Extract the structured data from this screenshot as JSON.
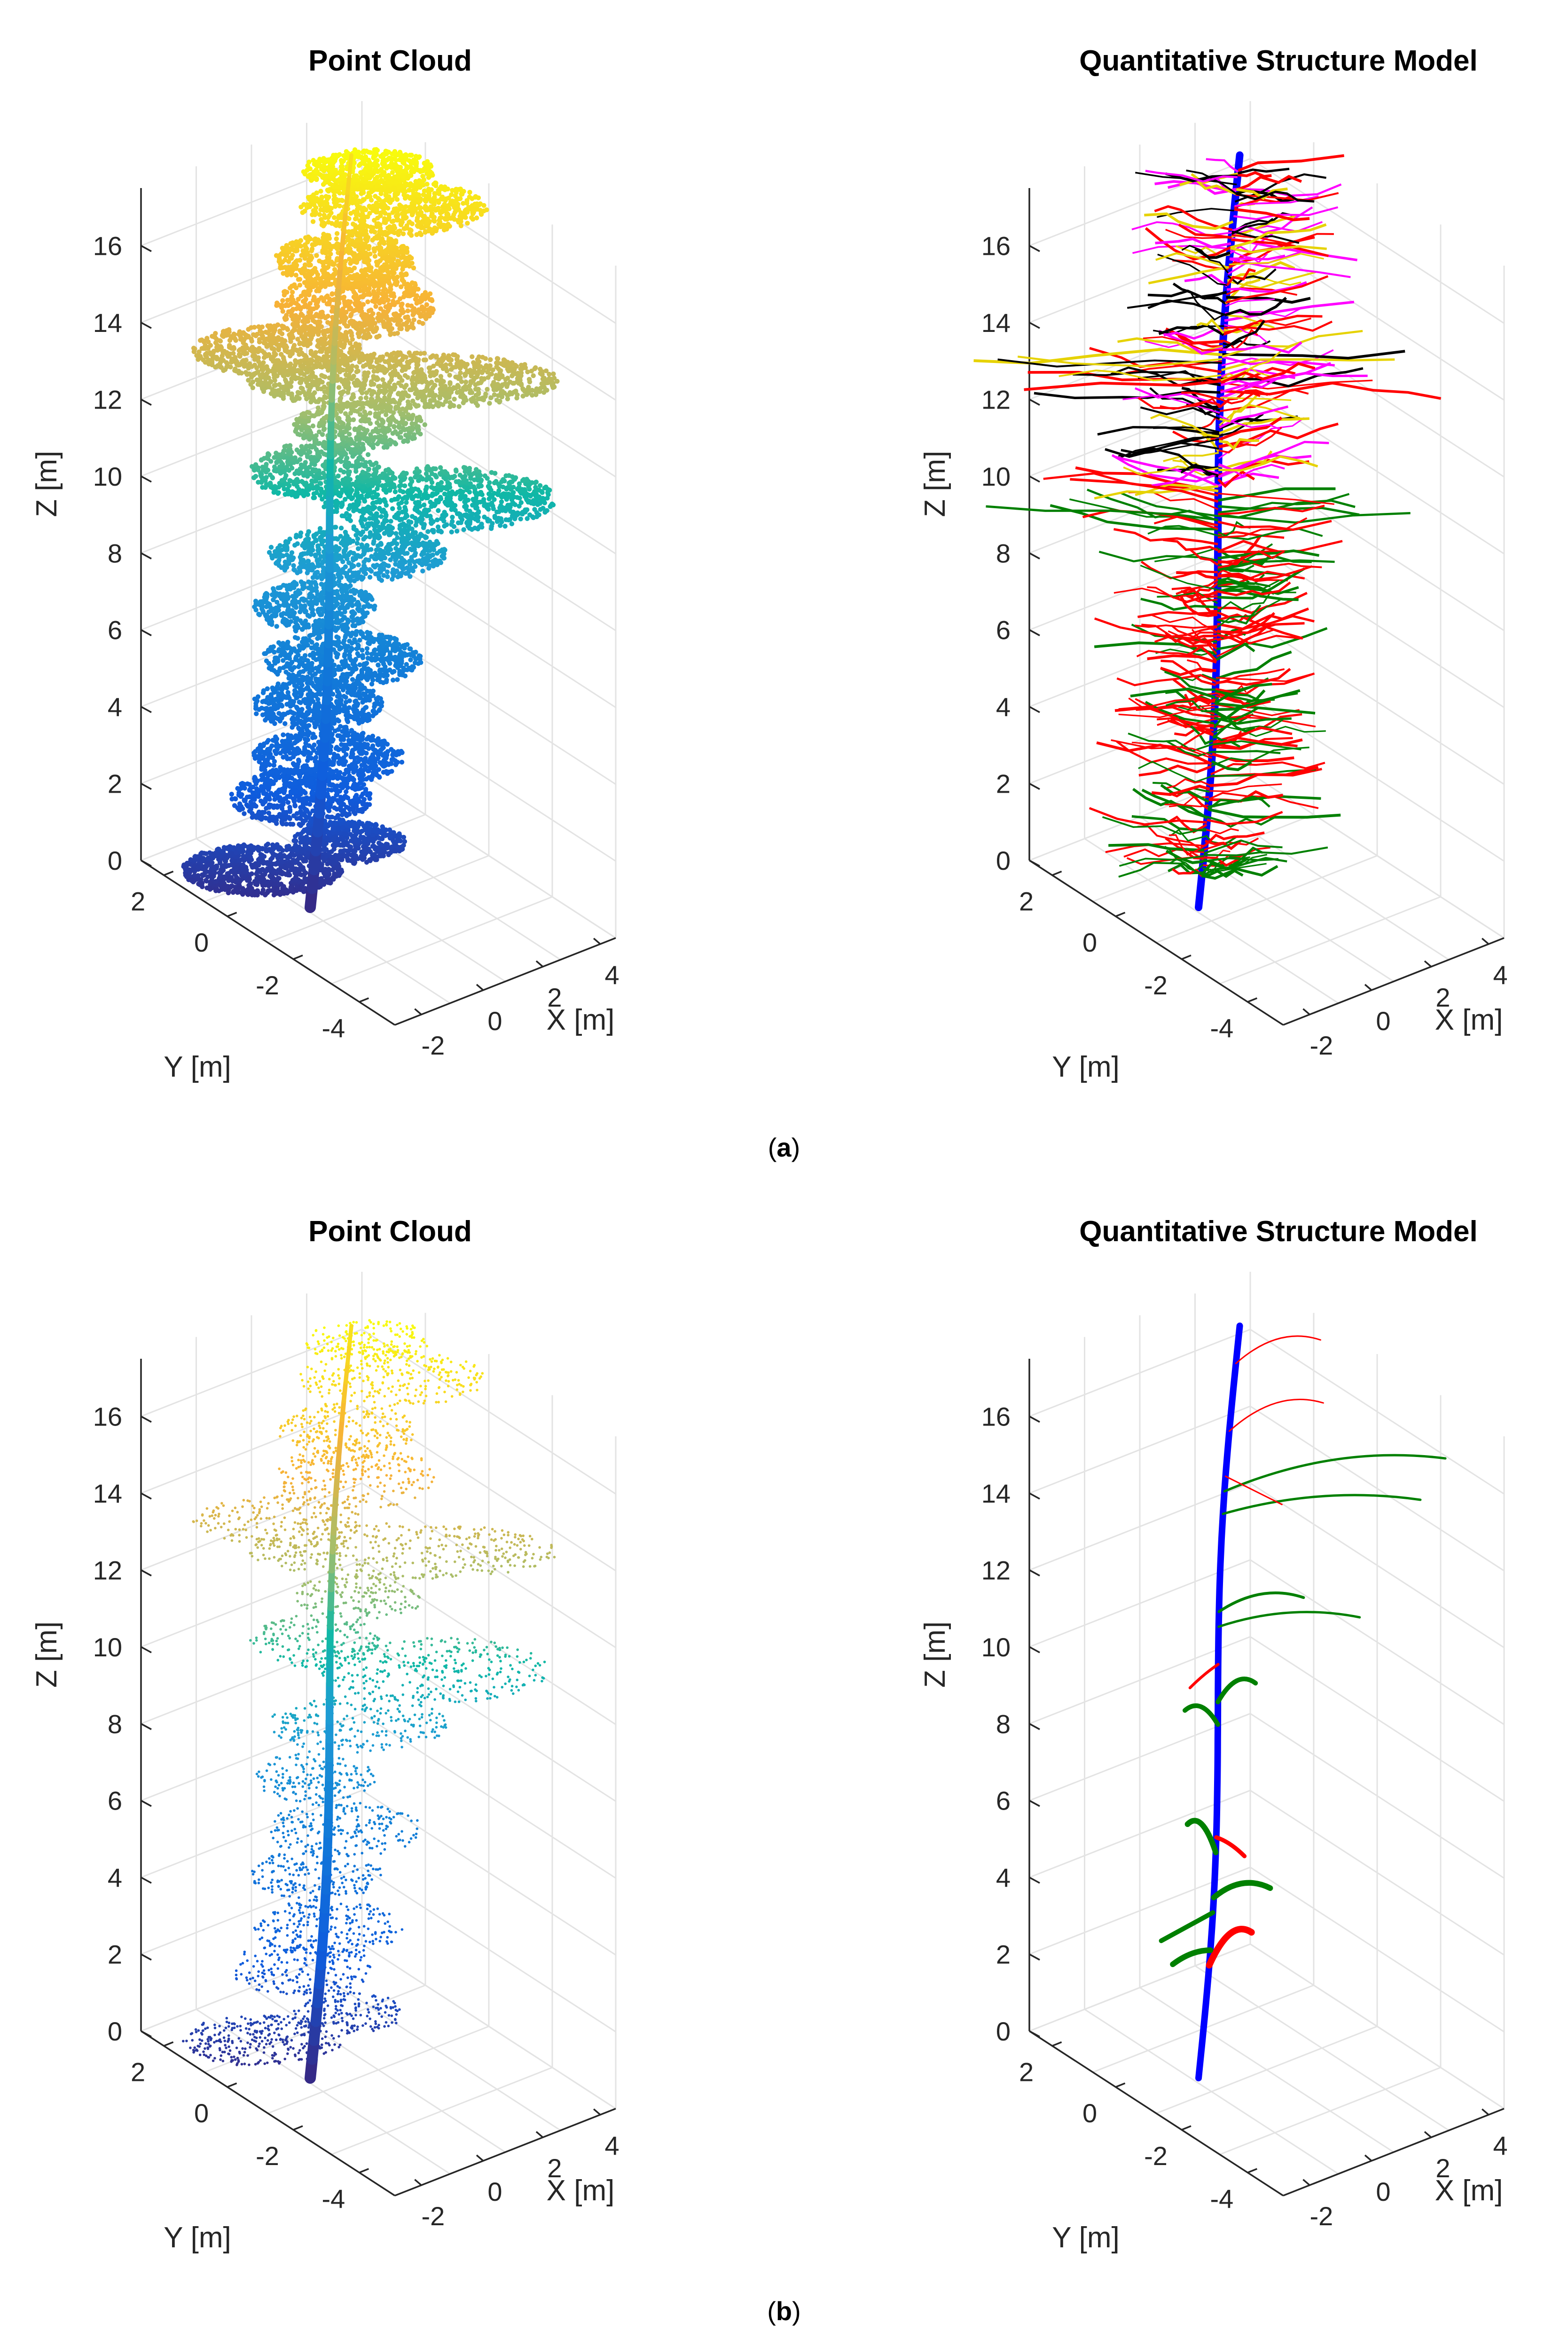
{
  "figure": {
    "panels": [
      {
        "label_open": "(",
        "label_letter": "a",
        "label_close": ")",
        "variant": "dense"
      },
      {
        "label_open": "(",
        "label_letter": "b",
        "label_close": ")",
        "variant": "sparse"
      }
    ]
  },
  "chart_data": [
    {
      "type": "scatter",
      "panel": "a",
      "title": "Point Cloud",
      "xlabel": "X [m]",
      "ylabel": "Y [m]",
      "zlabel": "Z [m]",
      "x_ticks": [
        "-2",
        "0",
        "2",
        "4"
      ],
      "y_ticks": [
        "2",
        "0",
        "-2",
        "-4"
      ],
      "z_ticks": [
        "0",
        "2",
        "4",
        "6",
        "8",
        "10",
        "12",
        "14",
        "16"
      ],
      "zlim": [
        0,
        17.5
      ],
      "colormap": [
        "#352a87",
        "#0f5cdd",
        "#1e9cd4",
        "#0fb8a6",
        "#a5be6b",
        "#f7b137",
        "#f8fa0d"
      ]
    },
    {
      "type": "line",
      "panel": "a",
      "title": "Quantitative Structure Model",
      "xlabel": "X [m]",
      "ylabel": "Y [m]",
      "zlabel": "Z [m]",
      "x_ticks": [
        "-2",
        "0",
        "2",
        "4"
      ],
      "y_ticks": [
        "2",
        "0",
        "-2",
        "-4"
      ],
      "z_ticks": [
        "0",
        "2",
        "4",
        "6",
        "8",
        "10",
        "12",
        "14",
        "16"
      ],
      "zlim": [
        0,
        17.5
      ],
      "branch_order_colors": [
        "#0000ff",
        "#008000",
        "#ff0000",
        "#ff00ff",
        "#e6d200",
        "#000000"
      ]
    },
    {
      "type": "scatter",
      "panel": "b",
      "title": "Point Cloud",
      "xlabel": "X [m]",
      "ylabel": "Y [m]",
      "zlabel": "Z [m]",
      "x_ticks": [
        "-2",
        "0",
        "2",
        "4"
      ],
      "y_ticks": [
        "2",
        "0",
        "-2",
        "-4"
      ],
      "z_ticks": [
        "0",
        "2",
        "4",
        "6",
        "8",
        "10",
        "12",
        "14",
        "16"
      ],
      "zlim": [
        0,
        17.5
      ],
      "colormap": [
        "#352a87",
        "#0f5cdd",
        "#1e9cd4",
        "#0fb8a6",
        "#a5be6b",
        "#f7b137",
        "#f8fa0d"
      ]
    },
    {
      "type": "line",
      "panel": "b",
      "title": "Quantitative Structure Model",
      "xlabel": "X [m]",
      "ylabel": "Y [m]",
      "zlabel": "Z [m]",
      "x_ticks": [
        "-2",
        "0",
        "2",
        "4"
      ],
      "y_ticks": [
        "2",
        "0",
        "-2",
        "-4"
      ],
      "z_ticks": [
        "0",
        "2",
        "4",
        "6",
        "8",
        "10",
        "12",
        "14",
        "16"
      ],
      "zlim": [
        0,
        17.5
      ],
      "branch_order_colors": [
        "#0000ff",
        "#008000",
        "#ff0000"
      ]
    }
  ]
}
